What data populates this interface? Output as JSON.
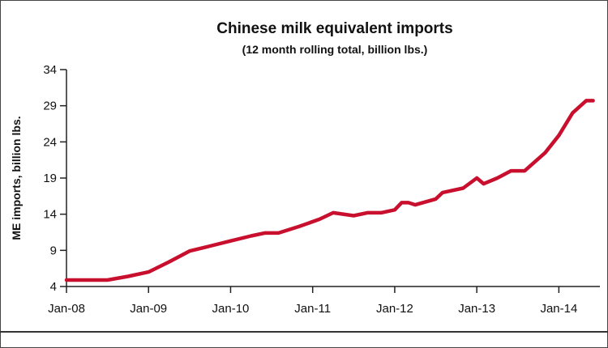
{
  "chart_data": {
    "type": "line",
    "title": "Chinese milk equivalent imports",
    "subtitle": "(12 month rolling total, billion lbs.)",
    "xlabel": "",
    "ylabel": "ME imports, billion lbs.",
    "ylim": [
      4,
      34
    ],
    "yticks": [
      4,
      9,
      14,
      19,
      24,
      29,
      34
    ],
    "xlim": [
      "2008-01",
      "2014-07"
    ],
    "xticks": [
      "Jan-08",
      "Jan-09",
      "Jan-10",
      "Jan-11",
      "Jan-12",
      "Jan-13",
      "Jan-14"
    ],
    "grid": false,
    "color": "#c8102e",
    "series": [
      {
        "points": [
          [
            "2008-01",
            4.9
          ],
          [
            "2008-04",
            4.9
          ],
          [
            "2008-07",
            4.9
          ],
          [
            "2008-10",
            5.4
          ],
          [
            "2009-01",
            6.0
          ],
          [
            "2009-04",
            7.4
          ],
          [
            "2009-07",
            8.9
          ],
          [
            "2009-10",
            9.6
          ],
          [
            "2010-01",
            10.3
          ],
          [
            "2010-04",
            11.0
          ],
          [
            "2010-06",
            11.4
          ],
          [
            "2010-08",
            11.4
          ],
          [
            "2010-11",
            12.3
          ],
          [
            "2011-02",
            13.3
          ],
          [
            "2011-04",
            14.2
          ],
          [
            "2011-07",
            13.8
          ],
          [
            "2011-09",
            14.2
          ],
          [
            "2011-11",
            14.2
          ],
          [
            "2012-01",
            14.6
          ],
          [
            "2012-02",
            15.6
          ],
          [
            "2012-03",
            15.6
          ],
          [
            "2012-04",
            15.3
          ],
          [
            "2012-07",
            16.1
          ],
          [
            "2012-08",
            17.0
          ],
          [
            "2012-11",
            17.6
          ],
          [
            "2013-01",
            19.0
          ],
          [
            "2013-02",
            18.2
          ],
          [
            "2013-04",
            19.0
          ],
          [
            "2013-06",
            20.0
          ],
          [
            "2013-08",
            20.0
          ],
          [
            "2013-11",
            22.5
          ],
          [
            "2014-01",
            24.9
          ],
          [
            "2014-03",
            28.0
          ],
          [
            "2014-05",
            29.7
          ],
          [
            "2014-06",
            29.7
          ]
        ]
      }
    ]
  }
}
